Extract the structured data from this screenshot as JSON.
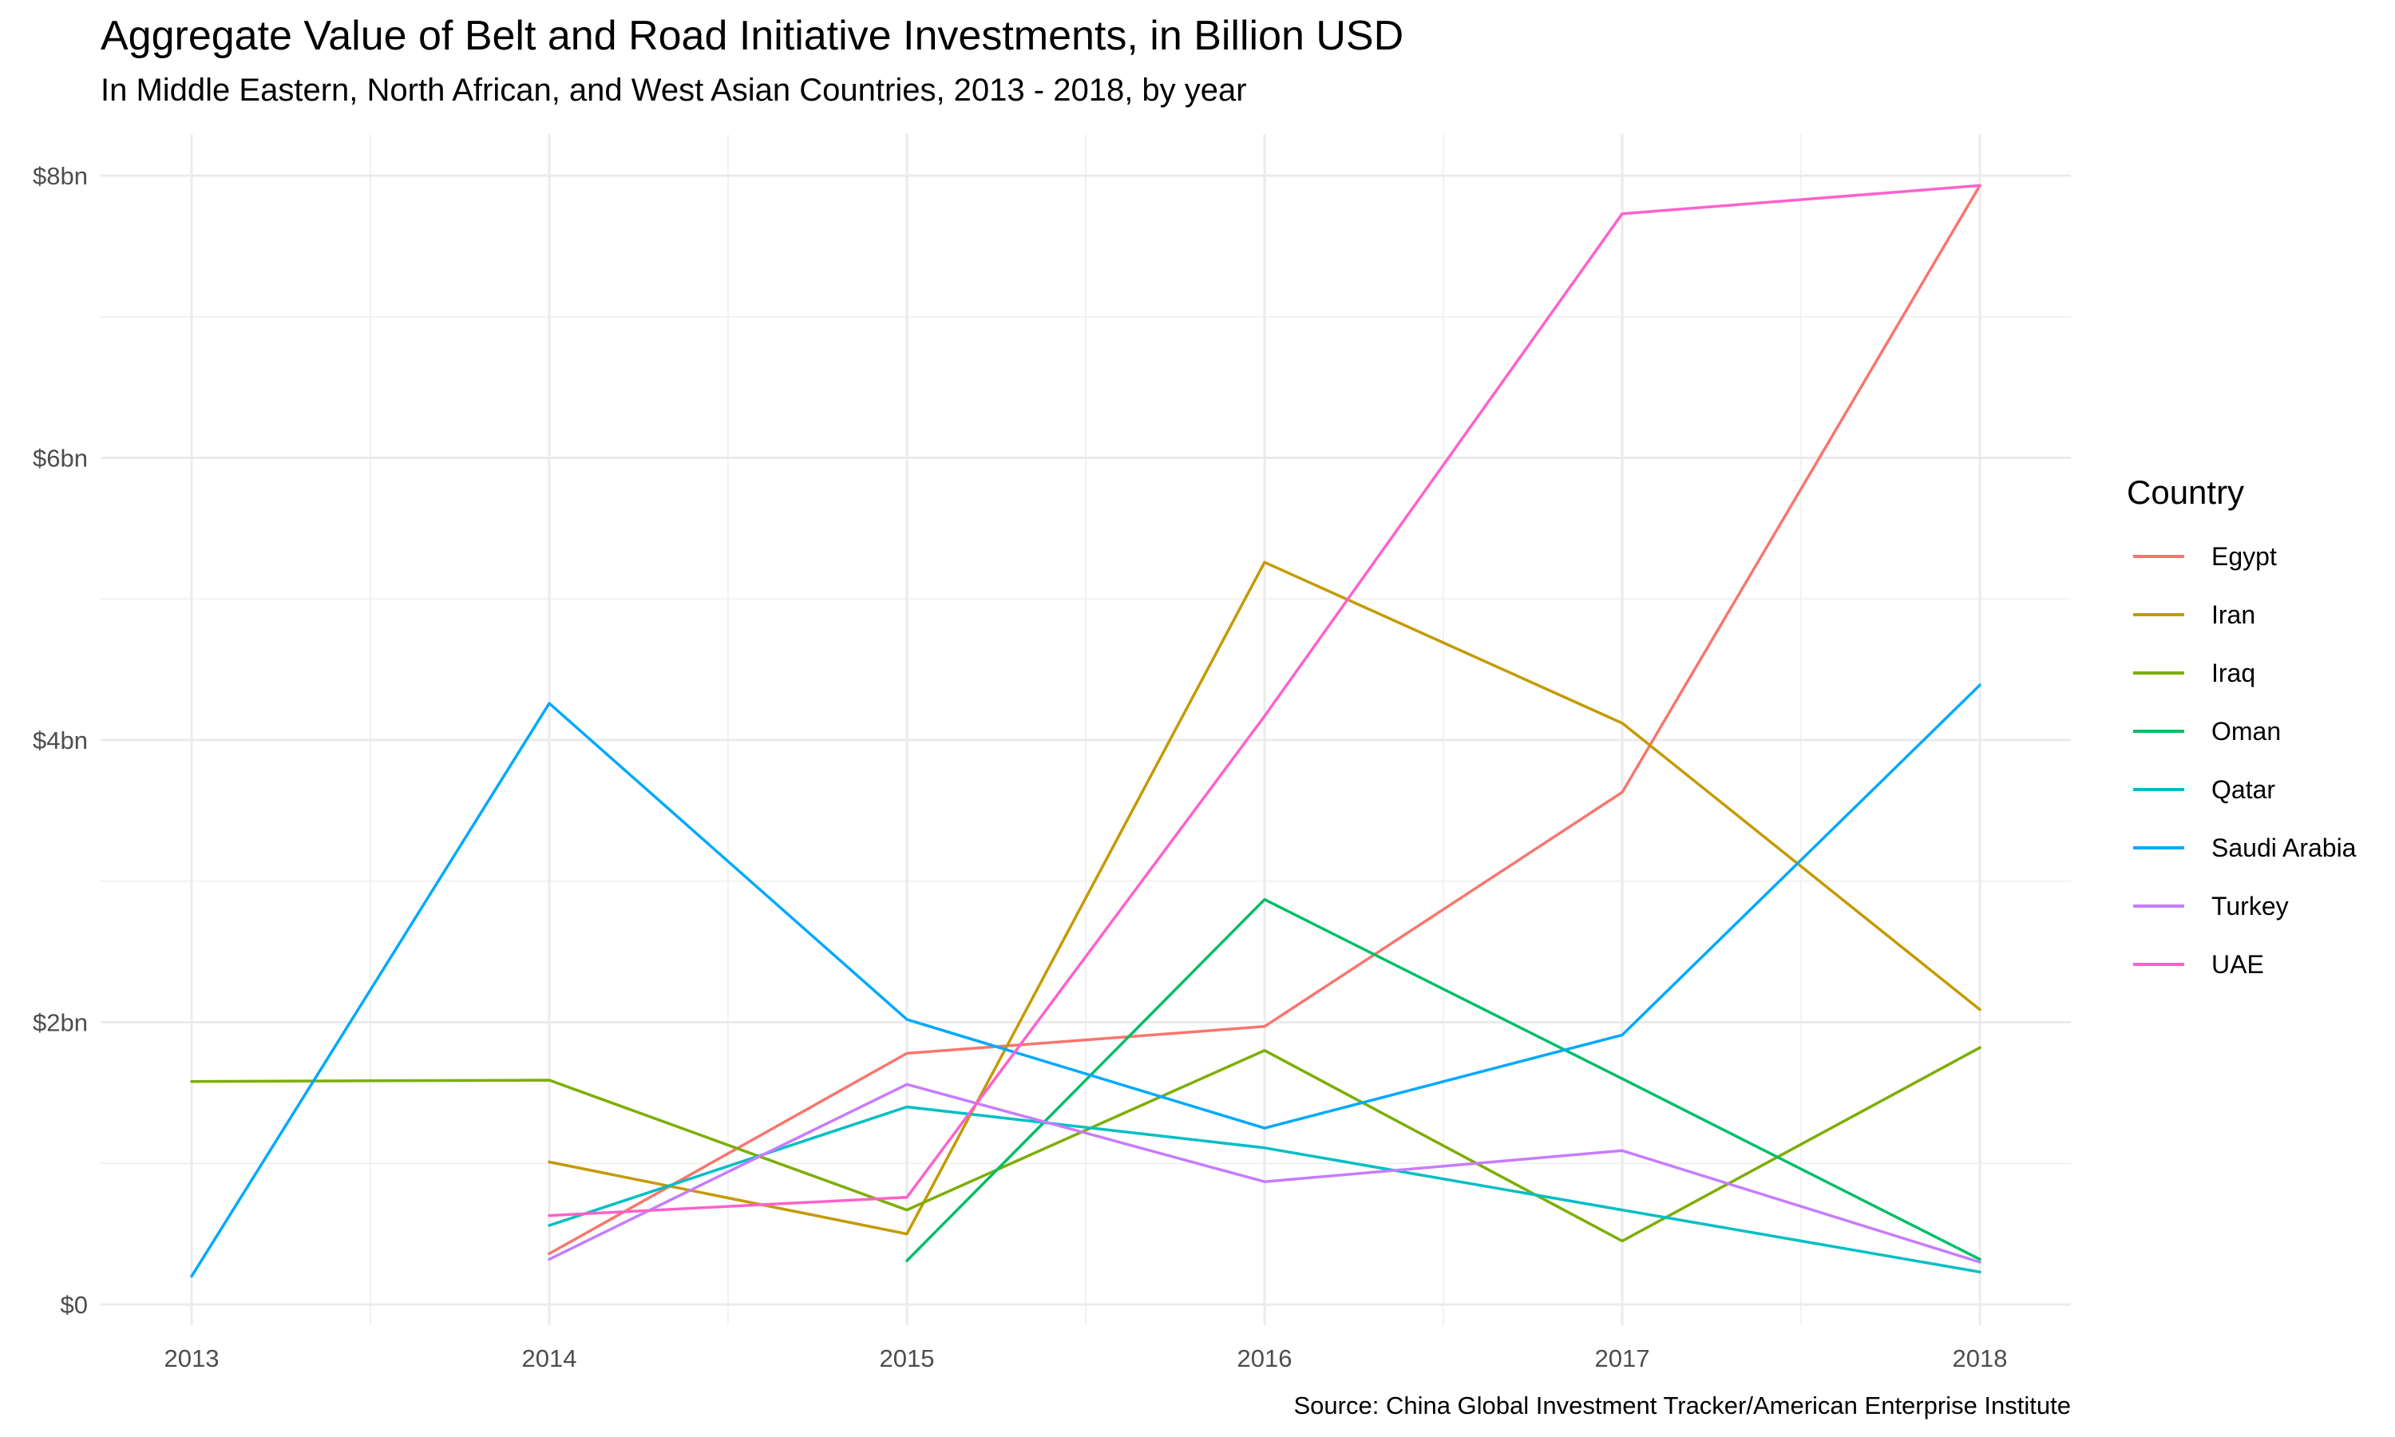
{
  "chart_data": {
    "type": "line",
    "title": "Aggregate Value of Belt and Road Initiative Investments, in Billion USD",
    "subtitle": "In Middle Eastern, North African, and West Asian Countries, 2013 - 2018, by year",
    "caption": "Source: China Global Investment Tracker/American Enterprise Institute",
    "xlabel": "",
    "ylabel": "",
    "x": [
      2013,
      2014,
      2015,
      2016,
      2017,
      2018
    ],
    "x_tick_labels": [
      "2013",
      "2014",
      "2015",
      "2016",
      "2017",
      "2018"
    ],
    "ylim": [
      0,
      8
    ],
    "y_ticks": [
      0,
      2,
      4,
      6,
      8
    ],
    "y_tick_labels": [
      "$0",
      "$2bn",
      "$4bn",
      "$6bn",
      "$8bn"
    ],
    "grid": true,
    "legend": {
      "title": "Country",
      "position": "right"
    },
    "series": [
      {
        "name": "Egypt",
        "color": "#F8766D",
        "values": [
          null,
          0.36,
          1.78,
          1.97,
          3.63,
          7.93
        ]
      },
      {
        "name": "Iran",
        "color": "#C49A00",
        "values": [
          null,
          1.01,
          0.5,
          5.26,
          4.12,
          2.09
        ]
      },
      {
        "name": "Iraq",
        "color": "#7CAE00",
        "values": [
          1.58,
          1.59,
          0.67,
          1.8,
          0.45,
          1.82
        ]
      },
      {
        "name": "Oman",
        "color": "#00BE67",
        "values": [
          null,
          null,
          0.31,
          2.87,
          1.6,
          0.32
        ]
      },
      {
        "name": "Qatar",
        "color": "#00BFC4",
        "values": [
          null,
          0.56,
          1.4,
          1.11,
          0.67,
          0.23
        ]
      },
      {
        "name": "Saudi Arabia",
        "color": "#00A9FF",
        "values": [
          0.2,
          4.26,
          2.02,
          1.25,
          1.91,
          4.39
        ]
      },
      {
        "name": "Turkey",
        "color": "#C77CFF",
        "values": [
          null,
          0.32,
          1.56,
          0.87,
          1.09,
          0.3
        ]
      },
      {
        "name": "UAE",
        "color": "#FF61CC",
        "values": [
          null,
          0.63,
          0.76,
          4.17,
          7.73,
          7.93
        ]
      }
    ]
  }
}
